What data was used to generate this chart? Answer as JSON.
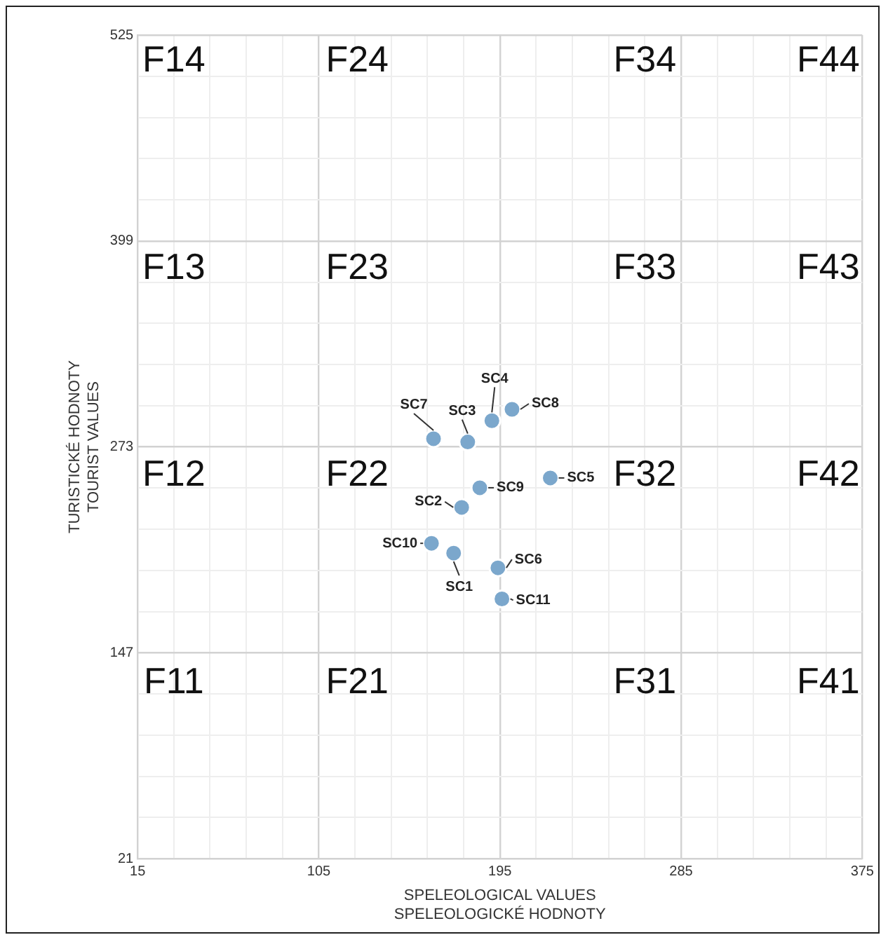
{
  "chart_data": {
    "type": "scatter",
    "xlabel": "SPELEOLOGICAL VALUES\nSPELEOLOGICKÉ HODNOTY",
    "ylabel": "TURISTICKÉ HODNOTY\nTOURIST VALUES",
    "xlim": [
      15,
      375
    ],
    "xticks": [
      15,
      {
        "value": 33,
        "label": null
      },
      {
        "value": 51,
        "label": null
      },
      {
        "value": 69,
        "label": null
      },
      {
        "value": 87,
        "label": null
      },
      105,
      {
        "value": 123,
        "label": null
      },
      {
        "value": 141,
        "label": null
      },
      {
        "value": 159,
        "label": null
      },
      {
        "value": 177,
        "label": null
      },
      195,
      {
        "value": 213,
        "label": null
      },
      {
        "value": 231,
        "label": null
      },
      {
        "value": 249,
        "label": null
      },
      {
        "value": 267,
        "label": null
      },
      285,
      {
        "value": 303,
        "label": null
      },
      {
        "value": 321,
        "label": null
      },
      {
        "value": 339,
        "label": null
      },
      {
        "value": 357,
        "label": null
      },
      375
    ],
    "ylim": [
      21,
      525
    ],
    "yticks": [
      21,
      {
        "value": 46.2,
        "label": null
      },
      {
        "value": 71.4,
        "label": null
      },
      {
        "value": 96.6,
        "label": null
      },
      {
        "value": 121.8,
        "label": null
      },
      147,
      {
        "value": 172.2,
        "label": null
      },
      {
        "value": 197.4,
        "label": null
      },
      {
        "value": 222.6,
        "label": null
      },
      {
        "value": 247.8,
        "label": null
      },
      273,
      {
        "value": 298.2,
        "label": null
      },
      {
        "value": 323.4,
        "label": null
      },
      {
        "value": 348.6,
        "label": null
      },
      {
        "value": 373.8,
        "label": null
      },
      399,
      {
        "value": 424.2,
        "label": null
      },
      {
        "value": 449.4,
        "label": null
      },
      {
        "value": 474.6,
        "label": null
      },
      {
        "value": 499.8,
        "label": null
      },
      525
    ],
    "grid": true,
    "legend": false,
    "marker": "circle",
    "series": [
      {
        "name": "SC1",
        "color": "#7ba7cc",
        "x": [
          172
        ],
        "values": [
          208
        ]
      },
      {
        "name": "SC2",
        "color": "#7ba7cc",
        "x": [
          176
        ],
        "values": [
          236
        ]
      },
      {
        "name": "SC3",
        "color": "#7ba7cc",
        "x": [
          179
        ],
        "values": [
          276
        ]
      },
      {
        "name": "SC4",
        "color": "#7ba7cc",
        "x": [
          191
        ],
        "values": [
          289
        ]
      },
      {
        "name": "SC5",
        "color": "#7ba7cc",
        "x": [
          220
        ],
        "values": [
          254
        ]
      },
      {
        "name": "SC6",
        "color": "#7ba7cc",
        "x": [
          194
        ],
        "values": [
          199
        ]
      },
      {
        "name": "SC7",
        "color": "#7ba7cc",
        "x": [
          162
        ],
        "values": [
          278
        ]
      },
      {
        "name": "SC8",
        "color": "#7ba7cc",
        "x": [
          201
        ],
        "values": [
          296
        ]
      },
      {
        "name": "SC9",
        "color": "#7ba7cc",
        "x": [
          185
        ],
        "values": [
          248
        ]
      },
      {
        "name": "SC10",
        "color": "#7ba7cc",
        "x": [
          161
        ],
        "values": [
          214
        ]
      },
      {
        "name": "SC11",
        "color": "#7ba7cc",
        "x": [
          196
        ],
        "values": [
          180
        ]
      }
    ],
    "annotations": [
      "F14",
      "F24",
      "F34",
      "F44",
      "F13",
      "F23",
      "F33",
      "F43",
      "F12",
      "F22",
      "F32",
      "F42",
      "F11",
      "F21",
      "F31",
      "F41"
    ]
  }
}
